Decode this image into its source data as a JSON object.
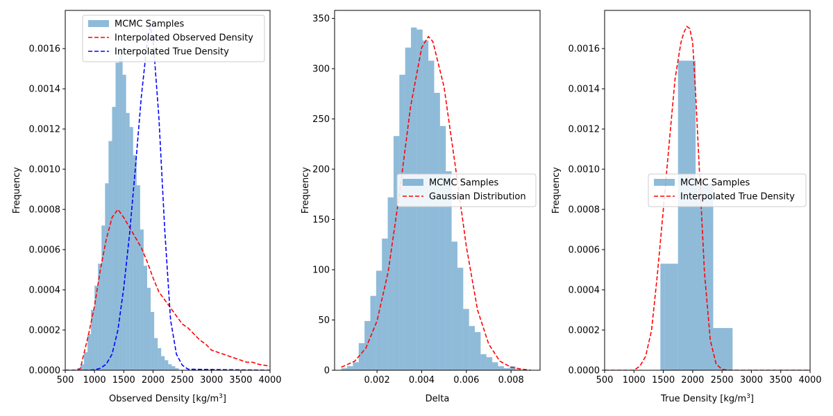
{
  "chart_data": [
    {
      "type": "bar",
      "xlabel": "Observed Density [kg/m³]",
      "xlabel_main": "Observed Density [kg/m",
      "xlabel_sup": "3",
      "xlabel_end": "]",
      "ylabel": "Frequency",
      "xlim": [
        500,
        4000
      ],
      "ylim": [
        0,
        0.00179
      ],
      "xticks": [
        500,
        1000,
        1500,
        2000,
        2500,
        3000,
        3500,
        4000
      ],
      "xtick_labels": [
        "500",
        "1000",
        "1500",
        "2000",
        "2500",
        "3000",
        "3500",
        "4000"
      ],
      "yticks": [
        0,
        0.0002,
        0.0004,
        0.0006,
        0.0008,
        0.001,
        0.0012,
        0.0014,
        0.0016
      ],
      "ytick_labels": [
        "0.0000",
        "0.0002",
        "0.0004",
        "0.0006",
        "0.0008",
        "0.0010",
        "0.0012",
        "0.0014",
        "0.0016"
      ],
      "legend_position": "upper-right",
      "histogram": {
        "name": "MCMC Samples",
        "color": "#1f77b4",
        "opacity": 0.5,
        "bins": [
          {
            "x0": 700,
            "x1": 760,
            "y": 1e-05
          },
          {
            "x0": 760,
            "x1": 820,
            "y": 3e-05
          },
          {
            "x0": 820,
            "x1": 880,
            "y": 9e-05
          },
          {
            "x0": 880,
            "x1": 940,
            "y": 0.00018
          },
          {
            "x0": 940,
            "x1": 1000,
            "y": 0.0003
          },
          {
            "x0": 1000,
            "x1": 1060,
            "y": 0.00042
          },
          {
            "x0": 1060,
            "x1": 1120,
            "y": 0.00053
          },
          {
            "x0": 1120,
            "x1": 1180,
            "y": 0.00072
          },
          {
            "x0": 1180,
            "x1": 1240,
            "y": 0.00093
          },
          {
            "x0": 1240,
            "x1": 1300,
            "y": 0.00114
          },
          {
            "x0": 1300,
            "x1": 1360,
            "y": 0.00131
          },
          {
            "x0": 1360,
            "x1": 1420,
            "y": 0.00153
          },
          {
            "x0": 1420,
            "x1": 1480,
            "y": 0.0016
          },
          {
            "x0": 1480,
            "x1": 1540,
            "y": 0.00147
          },
          {
            "x0": 1540,
            "x1": 1600,
            "y": 0.00128
          },
          {
            "x0": 1600,
            "x1": 1660,
            "y": 0.00121
          },
          {
            "x0": 1660,
            "x1": 1720,
            "y": 0.00107
          },
          {
            "x0": 1720,
            "x1": 1780,
            "y": 0.00092
          },
          {
            "x0": 1780,
            "x1": 1840,
            "y": 0.0007
          },
          {
            "x0": 1840,
            "x1": 1900,
            "y": 0.00052
          },
          {
            "x0": 1900,
            "x1": 1960,
            "y": 0.00041
          },
          {
            "x0": 1960,
            "x1": 2020,
            "y": 0.00029
          },
          {
            "x0": 2020,
            "x1": 2080,
            "y": 0.00016
          },
          {
            "x0": 2080,
            "x1": 2140,
            "y": 0.00011
          },
          {
            "x0": 2140,
            "x1": 2200,
            "y": 7e-05
          },
          {
            "x0": 2200,
            "x1": 2260,
            "y": 5e-05
          },
          {
            "x0": 2260,
            "x1": 2320,
            "y": 3e-05
          },
          {
            "x0": 2320,
            "x1": 2380,
            "y": 2e-05
          },
          {
            "x0": 2380,
            "x1": 2440,
            "y": 1e-05
          }
        ]
      },
      "series": [
        {
          "name": "Interpolated Observed Density",
          "color": "#ff0000",
          "dash": true,
          "x": [
            500,
            600,
            700,
            760,
            800,
            900,
            1000,
            1100,
            1200,
            1300,
            1400,
            1500,
            1600,
            1700,
            1800,
            1900,
            2000,
            2100,
            2200,
            2300,
            2400,
            2500,
            2600,
            2700,
            2800,
            2900,
            3000,
            3200,
            3400,
            3500,
            3600,
            3700,
            3800,
            4000
          ],
          "y": [
            0,
            0,
            0,
            1e-05,
            6e-05,
            0.00018,
            0.00032,
            0.0005,
            0.00065,
            0.00076,
            0.0008,
            0.00076,
            0.00071,
            0.00066,
            0.00061,
            0.00054,
            0.00046,
            0.00039,
            0.00035,
            0.00031,
            0.00027,
            0.00023,
            0.00021,
            0.00018,
            0.00015,
            0.00013,
            0.0001,
            8e-05,
            6e-05,
            5e-05,
            4e-05,
            4e-05,
            3e-05,
            2e-05
          ]
        },
        {
          "name": "Interpolated True Density",
          "color": "#0000ff",
          "dash": true,
          "x": [
            500,
            900,
            1000,
            1100,
            1200,
            1300,
            1400,
            1500,
            1600,
            1700,
            1800,
            1900,
            1950,
            2000,
            2100,
            2200,
            2300,
            2400,
            2500,
            2600,
            4000
          ],
          "y": [
            0,
            0,
            2e-06,
            1e-05,
            3e-05,
            8e-05,
            0.0002,
            0.00041,
            0.00068,
            0.00101,
            0.00136,
            0.00163,
            0.00171,
            0.00165,
            0.00126,
            0.0007,
            0.00025,
            8e-05,
            2.5e-05,
            5e-06,
            0
          ]
        }
      ]
    },
    {
      "type": "bar",
      "xlabel": "Delta",
      "ylabel": "Frequency",
      "xlim": [
        0.0001,
        0.0093
      ],
      "ylim": [
        0,
        358
      ],
      "xticks": [
        0.002,
        0.004,
        0.006,
        0.008
      ],
      "xtick_labels": [
        "0.002",
        "0.004",
        "0.006",
        "0.008"
      ],
      "yticks": [
        0,
        50,
        100,
        150,
        200,
        250,
        300,
        350
      ],
      "ytick_labels": [
        "0",
        "50",
        "100",
        "150",
        "200",
        "250",
        "300",
        "350"
      ],
      "legend_position": "center-right",
      "histogram": {
        "name": "MCMC Samples",
        "color": "#1f77b4",
        "opacity": 0.5,
        "bins": [
          {
            "x0": 0.0004,
            "x1": 0.00066,
            "y": 2
          },
          {
            "x0": 0.00066,
            "x1": 0.00092,
            "y": 4
          },
          {
            "x0": 0.00092,
            "x1": 0.00118,
            "y": 8
          },
          {
            "x0": 0.00118,
            "x1": 0.00144,
            "y": 27
          },
          {
            "x0": 0.00144,
            "x1": 0.0017,
            "y": 49
          },
          {
            "x0": 0.0017,
            "x1": 0.00196,
            "y": 74
          },
          {
            "x0": 0.00196,
            "x1": 0.00222,
            "y": 99
          },
          {
            "x0": 0.00222,
            "x1": 0.00248,
            "y": 131
          },
          {
            "x0": 0.00248,
            "x1": 0.00274,
            "y": 172
          },
          {
            "x0": 0.00274,
            "x1": 0.003,
            "y": 233
          },
          {
            "x0": 0.003,
            "x1": 0.00326,
            "y": 294
          },
          {
            "x0": 0.00326,
            "x1": 0.00352,
            "y": 321
          },
          {
            "x0": 0.00352,
            "x1": 0.00378,
            "y": 341
          },
          {
            "x0": 0.00378,
            "x1": 0.00404,
            "y": 339
          },
          {
            "x0": 0.00404,
            "x1": 0.0043,
            "y": 328
          },
          {
            "x0": 0.0043,
            "x1": 0.00456,
            "y": 308
          },
          {
            "x0": 0.00456,
            "x1": 0.00482,
            "y": 276
          },
          {
            "x0": 0.00482,
            "x1": 0.00508,
            "y": 243
          },
          {
            "x0": 0.00508,
            "x1": 0.00534,
            "y": 198
          },
          {
            "x0": 0.00534,
            "x1": 0.0056,
            "y": 128
          },
          {
            "x0": 0.0056,
            "x1": 0.00586,
            "y": 102
          },
          {
            "x0": 0.00586,
            "x1": 0.00612,
            "y": 61
          },
          {
            "x0": 0.00612,
            "x1": 0.00638,
            "y": 44
          },
          {
            "x0": 0.00638,
            "x1": 0.00664,
            "y": 38
          },
          {
            "x0": 0.00664,
            "x1": 0.0069,
            "y": 16
          },
          {
            "x0": 0.0069,
            "x1": 0.00716,
            "y": 13
          },
          {
            "x0": 0.00716,
            "x1": 0.00742,
            "y": 8
          },
          {
            "x0": 0.00742,
            "x1": 0.00768,
            "y": 4
          },
          {
            "x0": 0.00768,
            "x1": 0.00794,
            "y": 2
          },
          {
            "x0": 0.00794,
            "x1": 0.0082,
            "y": 4
          },
          {
            "x0": 0.0082,
            "x1": 0.00846,
            "y": 1
          }
        ]
      },
      "series": [
        {
          "name": "Gaussian Distribution",
          "color": "#ff0000",
          "dash": true,
          "x": [
            0.0004,
            0.001,
            0.0015,
            0.002,
            0.0025,
            0.003,
            0.0035,
            0.004,
            0.0043,
            0.0045,
            0.005,
            0.0055,
            0.006,
            0.0065,
            0.007,
            0.0075,
            0.008,
            0.0085,
            0.0089
          ],
          "y": [
            3,
            9,
            22,
            49,
            98,
            175,
            262,
            321,
            332,
            327,
            282,
            204,
            123,
            60,
            26,
            9,
            3,
            1,
            0
          ]
        }
      ]
    },
    {
      "type": "bar",
      "xlabel": "True Density [kg/m³]",
      "xlabel_main": "True Density [kg/m",
      "xlabel_sup": "3",
      "xlabel_end": "]",
      "ylabel": "Frequency",
      "xlim": [
        500,
        4000
      ],
      "ylim": [
        0,
        0.00179
      ],
      "xticks": [
        500,
        1000,
        1500,
        2000,
        2500,
        3000,
        3500,
        4000
      ],
      "xtick_labels": [
        "500",
        "1000",
        "1500",
        "2000",
        "2500",
        "3000",
        "3500",
        "4000"
      ],
      "yticks": [
        0,
        0.0002,
        0.0004,
        0.0006,
        0.0008,
        0.001,
        0.0012,
        0.0014,
        0.0016
      ],
      "ytick_labels": [
        "0.0000",
        "0.0002",
        "0.0004",
        "0.0006",
        "0.0008",
        "0.0010",
        "0.0012",
        "0.0014",
        "0.0016"
      ],
      "legend_position": "center-right",
      "histogram": {
        "name": "MCMC Samples",
        "color": "#1f77b4",
        "opacity": 0.5,
        "bins": [
          {
            "x0": 1450,
            "x1": 1520,
            "y": 0.00053
          },
          {
            "x0": 1520,
            "x1": 1750,
            "y": 0.00053
          },
          {
            "x0": 1750,
            "x1": 2050,
            "y": 0.00154
          },
          {
            "x0": 2050,
            "x1": 2350,
            "y": 0.00093
          },
          {
            "x0": 2350,
            "x1": 2680,
            "y": 0.00021
          }
        ]
      },
      "series": [
        {
          "name": "Interpolated True Density",
          "color": "#ff0000",
          "dash": true,
          "x": [
            500,
            1000,
            1100,
            1200,
            1300,
            1400,
            1500,
            1600,
            1700,
            1800,
            1850,
            1900,
            1950,
            2000,
            2050,
            2100,
            2200,
            2300,
            2400,
            2500,
            2600,
            4000
          ],
          "y": [
            0,
            0,
            2e-05,
            7e-05,
            0.0002,
            0.00048,
            0.0008,
            0.00113,
            0.00145,
            0.00163,
            0.00168,
            0.00171,
            0.0017,
            0.00163,
            0.00138,
            0.00108,
            0.00049,
            0.00015,
            3e-05,
            5e-06,
            0,
            0
          ]
        }
      ]
    }
  ]
}
